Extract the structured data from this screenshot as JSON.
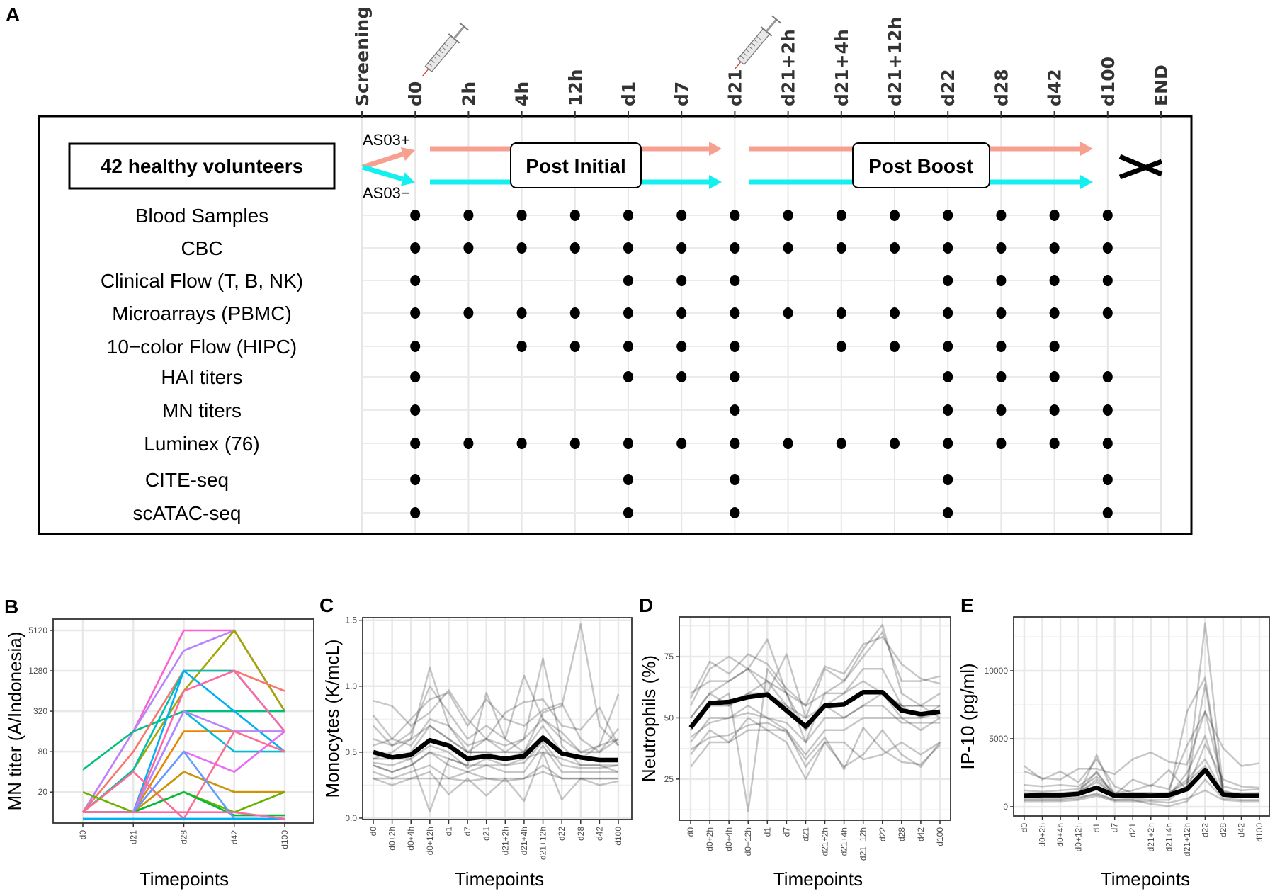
{
  "panel_a": {
    "label": "A",
    "columns": [
      "Screening",
      "d0",
      "2h",
      "4h",
      "12h",
      "d1",
      "d7",
      "d21",
      "d21+2h",
      "d21+4h",
      "d21+12h",
      "d22",
      "d28",
      "d42",
      "d100",
      "END"
    ],
    "vaccination_columns": [
      "d0",
      "d21"
    ],
    "cohort": "42 healthy volunteers",
    "arms": [
      {
        "label": "AS03+",
        "color": "#F7A090"
      },
      {
        "label": "AS03−",
        "color": "#14F0F0"
      }
    ],
    "phases": [
      "Post Initial",
      "Post Boost"
    ],
    "assays": [
      {
        "name": "Blood Samples",
        "timepoints": [
          "d0",
          "2h",
          "4h",
          "12h",
          "d1",
          "d7",
          "d21",
          "d21+2h",
          "d21+4h",
          "d21+12h",
          "d22",
          "d28",
          "d42",
          "d100"
        ]
      },
      {
        "name": "CBC",
        "timepoints": [
          "d0",
          "2h",
          "4h",
          "12h",
          "d1",
          "d7",
          "d21",
          "d21+2h",
          "d21+4h",
          "d21+12h",
          "d22",
          "d28",
          "d42",
          "d100"
        ]
      },
      {
        "name": "Clinical Flow (T, B, NK)",
        "timepoints": [
          "d0",
          "d1",
          "d7",
          "d21",
          "d22",
          "d28",
          "d42",
          "d100"
        ]
      },
      {
        "name": "Microarrays (PBMC)",
        "timepoints": [
          "d0",
          "2h",
          "4h",
          "12h",
          "d1",
          "d7",
          "d21",
          "d21+2h",
          "d21+4h",
          "d21+12h",
          "d22",
          "d28",
          "d42",
          "d100"
        ]
      },
      {
        "name": "10−color Flow (HIPC)",
        "timepoints": [
          "d0",
          "4h",
          "12h",
          "d1",
          "d7",
          "d21",
          "d21+4h",
          "d21+12h",
          "d22",
          "d28",
          "d42"
        ]
      },
      {
        "name": "HAI titers",
        "timepoints": [
          "d0",
          "d1",
          "d7",
          "d21",
          "d22",
          "d28",
          "d42",
          "d100"
        ]
      },
      {
        "name": "MN titers",
        "timepoints": [
          "d0",
          "d21",
          "d22",
          "d28",
          "d42",
          "d100"
        ]
      },
      {
        "name": "Luminex (76)",
        "timepoints": [
          "d0",
          "2h",
          "4h",
          "12h",
          "d1",
          "d7",
          "d21",
          "d21+2h",
          "d21+4h",
          "d21+12h",
          "d22",
          "d28",
          "d42",
          "d100"
        ]
      },
      {
        "name": "CITE-seq",
        "timepoints": [
          "d0",
          "d1",
          "d21",
          "d22",
          "d100"
        ]
      },
      {
        "name": "scATAC-seq",
        "timepoints": [
          "d0",
          "d1",
          "d21",
          "d22",
          "d100"
        ]
      }
    ]
  },
  "chart_data": [
    {
      "panel": "B",
      "type": "line",
      "title": "",
      "xlabel": "Timepoints",
      "ylabel": "MN titer (A/Indonesia)",
      "categories": [
        "d0",
        "d21",
        "d28",
        "d42",
        "d100"
      ],
      "yscale": "log2",
      "ylim": [
        6.9,
        7550
      ],
      "yticks": [
        20,
        80,
        320,
        1280,
        5120
      ],
      "ytick_labels": [
        "20",
        "80",
        "320",
        "1280",
        "5120"
      ],
      "grid": true,
      "colors": [
        "#FD61D1",
        "#B983FF",
        "#A3A500",
        "#00BF7D",
        "#F8766D",
        "#00C0AF",
        "#00B0F6",
        "#FF67A4",
        "#E58700",
        "#00BCD8",
        "#B983FF",
        "#E76BF3",
        "#FF6C91",
        "#FD61D1",
        "#C99800",
        "#6BB100",
        "#00BA38",
        "#619CFF",
        "#00B0F6",
        "#FF67A4"
      ],
      "series": [
        [
          10,
          160,
          5120,
          5120,
          320
        ],
        [
          10,
          160,
          2560,
          5120,
          320
        ],
        [
          10,
          43,
          640,
          5120,
          320
        ],
        [
          43,
          160,
          320,
          320,
          320
        ],
        [
          10,
          80,
          1280,
          1280,
          640
        ],
        [
          10,
          43,
          1280,
          1280,
          160
        ],
        [
          10,
          10,
          1280,
          320,
          80
        ],
        [
          10,
          10,
          640,
          1280,
          160
        ],
        [
          10,
          10,
          160,
          160,
          160
        ],
        [
          10,
          10,
          320,
          80,
          80
        ],
        [
          10,
          10,
          320,
          160,
          160
        ],
        [
          10,
          10,
          80,
          40,
          160
        ],
        [
          10,
          40,
          8,
          160,
          80
        ],
        [
          10,
          10,
          40,
          20,
          20
        ],
        [
          10,
          10,
          40,
          20,
          20
        ],
        [
          20,
          10,
          20,
          10,
          20
        ],
        [
          10,
          10,
          20,
          9,
          9
        ],
        [
          10,
          10,
          80,
          8,
          8
        ],
        [
          8,
          8,
          8,
          8,
          8
        ],
        [
          10,
          10,
          10,
          10,
          8
        ]
      ]
    },
    {
      "panel": "C",
      "type": "line",
      "title": "",
      "xlabel": "Timepoints",
      "ylabel": "Monocytes (K/mcL)",
      "categories": [
        "d0",
        "d0+2h",
        "d0+4h",
        "d0+12h",
        "d1",
        "d7",
        "d21",
        "d21+2h",
        "d21+4h",
        "d21+12h",
        "d22",
        "d28",
        "d42",
        "d100"
      ],
      "yscale": "linear",
      "ylim": [
        -0.011,
        1.52
      ],
      "yticks": [
        0,
        0.5,
        1.0,
        1.5
      ],
      "ytick_labels": [
        "0.0",
        "0.5",
        "1.0",
        "1.5"
      ],
      "yminor": [
        0.25,
        0.75,
        1.25
      ],
      "grid": true,
      "mean": [
        0.5,
        0.46,
        0.48,
        0.59,
        0.55,
        0.45,
        0.47,
        0.45,
        0.47,
        0.61,
        0.49,
        0.46,
        0.44,
        0.44
      ],
      "individuals": [
        [
          0.45,
          0.5,
          0.6,
          1.14,
          0.7,
          0.5,
          0.5,
          0.45,
          0.5,
          0.7,
          0.5,
          0.45,
          0.45,
          0.45
        ],
        [
          0.45,
          0.45,
          0.45,
          0.05,
          0.45,
          0.4,
          0.4,
          0.4,
          0.45,
          0.5,
          0.45,
          0.4,
          0.4,
          0.4
        ],
        [
          0.5,
          0.45,
          0.5,
          0.7,
          0.6,
          0.5,
          0.5,
          0.5,
          0.5,
          0.8,
          0.85,
          1.47,
          0.7,
          0.55
        ],
        [
          0.6,
          0.55,
          0.6,
          0.7,
          0.6,
          0.5,
          0.6,
          0.5,
          0.6,
          1.21,
          0.55,
          0.4,
          0.4,
          0.35
        ],
        [
          0.89,
          0.85,
          0.7,
          0.8,
          0.97,
          0.75,
          0.6,
          0.8,
          0.88,
          0.9,
          0.7,
          0.67,
          0.84,
          0.55
        ],
        [
          0.4,
          0.35,
          0.4,
          0.5,
          0.45,
          0.4,
          0.95,
          0.6,
          0.5,
          0.6,
          0.5,
          0.45,
          0.55,
          0.94
        ],
        [
          0.3,
          0.25,
          0.3,
          0.35,
          0.18,
          0.3,
          0.17,
          0.3,
          0.13,
          0.5,
          0.14,
          0.3,
          0.25,
          0.28
        ],
        [
          0.35,
          0.3,
          0.35,
          0.4,
          0.3,
          0.35,
          0.3,
          0.28,
          0.3,
          0.4,
          0.3,
          0.3,
          0.3,
          0.3
        ],
        [
          0.55,
          0.6,
          0.55,
          0.75,
          0.7,
          0.55,
          0.6,
          0.55,
          0.6,
          0.75,
          0.6,
          0.5,
          0.55,
          0.6
        ],
        [
          0.4,
          0.35,
          0.4,
          0.5,
          0.4,
          0.35,
          0.4,
          0.35,
          0.35,
          0.55,
          0.35,
          0.35,
          0.35,
          0.35
        ],
        [
          0.7,
          0.55,
          0.65,
          1.0,
          0.8,
          0.6,
          0.7,
          0.6,
          1.08,
          0.75,
          0.65,
          0.5,
          0.5,
          0.6
        ],
        [
          0.3,
          0.3,
          0.3,
          0.3,
          0.3,
          0.28,
          0.3,
          0.3,
          0.3,
          0.35,
          0.3,
          0.3,
          0.3,
          0.3
        ],
        [
          0.78,
          0.6,
          0.75,
          0.9,
          0.95,
          0.7,
          0.9,
          0.75,
          0.7,
          0.82,
          0.87,
          0.6,
          0.5,
          0.68
        ],
        [
          0.42,
          0.4,
          0.45,
          0.55,
          0.5,
          0.38,
          0.45,
          0.4,
          0.42,
          0.58,
          0.4,
          0.38,
          0.38,
          0.4
        ]
      ]
    },
    {
      "panel": "D",
      "type": "line",
      "title": "",
      "xlabel": "Timepoints",
      "ylabel": "Neutrophils (%)",
      "categories": [
        "d0",
        "d0+2h",
        "d0+4h",
        "d0+12h",
        "d1",
        "d7",
        "d21",
        "d21+2h",
        "d21+4h",
        "d21+12h",
        "d22",
        "d28",
        "d42",
        "d100"
      ],
      "yscale": "linear",
      "ylim": [
        8.2,
        91.2
      ],
      "yticks": [
        25,
        50,
        75
      ],
      "ytick_labels": [
        "25",
        "50",
        "75"
      ],
      "yminor": [
        12.5,
        37.5,
        62.5,
        87.5
      ],
      "grid": true,
      "mean": [
        46,
        56,
        56.5,
        58.5,
        59.5,
        53,
        46.5,
        55,
        55.5,
        60.5,
        60.5,
        53,
        51.5,
        52.5
      ],
      "individuals": [
        [
          45,
          55,
          60,
          12,
          70,
          60,
          45,
          55,
          50,
          55,
          60,
          55,
          50,
          55
        ],
        [
          50,
          60,
          65,
          70,
          82,
          60,
          40,
          60,
          65,
          78,
          88,
          60,
          55,
          55
        ],
        [
          30,
          40,
          40,
          45,
          45,
          40,
          25,
          40,
          30,
          35,
          45,
          35,
          30,
          40
        ],
        [
          55,
          70,
          75,
          70,
          60,
          76,
          50,
          70,
          65,
          75,
          85,
          65,
          65,
          67
        ],
        [
          40,
          50,
          50,
          55,
          50,
          45,
          35,
          45,
          45,
          50,
          50,
          50,
          45,
          50
        ],
        [
          60,
          65,
          65,
          70,
          65,
          60,
          55,
          60,
          60,
          70,
          70,
          55,
          55,
          60
        ],
        [
          35,
          45,
          40,
          50,
          45,
          45,
          30,
          40,
          40,
          33,
          35,
          40,
          35,
          40
        ],
        [
          45,
          55,
          55,
          60,
          60,
          55,
          45,
          55,
          55,
          60,
          60,
          50,
          50,
          52
        ],
        [
          50,
          60,
          55,
          60,
          65,
          55,
          50,
          55,
          60,
          65,
          60,
          55,
          55,
          50
        ],
        [
          42,
          48,
          50,
          52,
          50,
          48,
          40,
          50,
          50,
          55,
          55,
          48,
          48,
          48
        ],
        [
          58,
          73,
          68,
          76,
          72,
          62,
          55,
          71,
          68,
          80,
          83,
          72,
          66,
          64
        ],
        [
          37,
          42,
          43,
          47,
          48,
          44,
          33,
          42,
          29,
          46,
          37,
          32,
          31,
          39
        ]
      ]
    },
    {
      "panel": "E",
      "type": "line",
      "title": "",
      "xlabel": "Timepoints",
      "ylabel": "IP-10 (pg/ml)",
      "categories": [
        "d0",
        "d0+2h",
        "d0+4h",
        "d0+12h",
        "d1",
        "d7",
        "d21",
        "d21+2h",
        "d21+4h",
        "d21+12h",
        "d22",
        "d28",
        "d42",
        "d100"
      ],
      "yscale": "linear",
      "ylim": [
        -680,
        13960
      ],
      "yticks": [
        0,
        5000,
        10000
      ],
      "ytick_labels": [
        "0",
        "5000",
        "10000"
      ],
      "yminor": [
        2500,
        7500,
        12500
      ],
      "grid": true,
      "mean": [
        800,
        850,
        850,
        950,
        1400,
        800,
        850,
        800,
        850,
        1300,
        2700,
        900,
        800,
        800
      ],
      "individuals": [
        [
          600,
          600,
          600,
          700,
          900,
          500,
          600,
          500,
          500,
          1500,
          13500,
          1200,
          800,
          800
        ],
        [
          3000,
          2000,
          2600,
          1800,
          3500,
          1500,
          1000,
          1000,
          900,
          7000,
          9500,
          1000,
          900,
          1000
        ],
        [
          2600,
          2100,
          2000,
          2800,
          2800,
          2400,
          3500,
          4000,
          3300,
          3100,
          7000,
          4300,
          3000,
          3200
        ],
        [
          700,
          800,
          800,
          900,
          3800,
          800,
          900,
          700,
          700,
          1500,
          9000,
          1000,
          800,
          800
        ],
        [
          1600,
          1500,
          1600,
          1500,
          2500,
          900,
          2000,
          1500,
          2700,
          1200,
          4600,
          2000,
          1500,
          1400
        ],
        [
          500,
          500,
          500,
          600,
          1000,
          500,
          500,
          200,
          50,
          400,
          2000,
          600,
          500,
          500
        ],
        [
          800,
          900,
          900,
          1000,
          2000,
          800,
          1000,
          1000,
          1000,
          2000,
          3500,
          1000,
          800,
          900
        ],
        [
          1200,
          1100,
          1200,
          1300,
          2200,
          1000,
          1200,
          1600,
          1300,
          4500,
          7000,
          1500,
          1200,
          1300
        ],
        [
          400,
          400,
          400,
          500,
          800,
          400,
          400,
          400,
          300,
          600,
          1200,
          500,
          400,
          400
        ],
        [
          1000,
          1000,
          1000,
          1100,
          1800,
          900,
          900,
          900,
          1000,
          1800,
          3000,
          1000,
          1000,
          1000
        ],
        [
          900,
          800,
          900,
          1000,
          2600,
          700,
          800,
          700,
          800,
          2500,
          5200,
          1100,
          900,
          900
        ]
      ]
    }
  ]
}
